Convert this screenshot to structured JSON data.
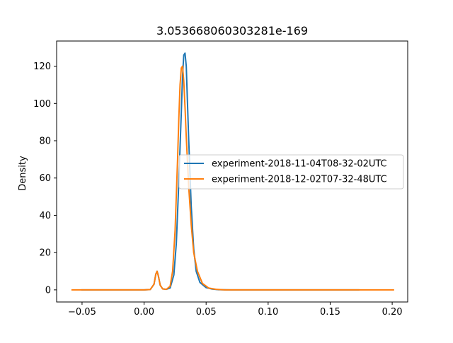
{
  "chart_data": {
    "type": "line",
    "title": "3.053668060303281e-169",
    "xlabel": "",
    "ylabel": "Density",
    "xlim": [
      -0.0705,
      0.2125
    ],
    "ylim": [
      -6.5,
      133.5
    ],
    "xticks": [
      -0.05,
      0.0,
      0.05,
      0.1,
      0.15,
      0.2
    ],
    "xtick_labels": [
      "−0.05",
      "0.00",
      "0.05",
      "0.10",
      "0.15",
      "0.20"
    ],
    "yticks": [
      0,
      20,
      40,
      60,
      80,
      100,
      120
    ],
    "ytick_labels": [
      "0",
      "20",
      "40",
      "60",
      "80",
      "100",
      "120"
    ],
    "grid": false,
    "legend_position": "center-right",
    "series": [
      {
        "name": "experiment-2018-11-04T08-32-02UTC",
        "color": "#1f77b4",
        "x": [
          -0.05,
          0.0,
          0.005,
          0.008,
          0.0095,
          0.0105,
          0.0115,
          0.013,
          0.015,
          0.018,
          0.021,
          0.024,
          0.026,
          0.028,
          0.03,
          0.031,
          0.032,
          0.033,
          0.034,
          0.035,
          0.036,
          0.038,
          0.04,
          0.042,
          0.045,
          0.05,
          0.055,
          0.06,
          0.07,
          0.1,
          0.15,
          0.173
        ],
        "y": [
          0,
          0,
          0.2,
          3,
          8.5,
          10,
          7.5,
          2.5,
          0.5,
          0.3,
          1,
          8,
          25,
          58,
          95,
          115,
          126,
          127,
          120,
          100,
          80,
          45,
          22,
          10,
          4,
          1.2,
          0.4,
          0.1,
          0,
          0,
          0,
          0
        ]
      },
      {
        "name": "experiment-2018-12-02T07-32-48UTC",
        "color": "#ff7f0e",
        "x": [
          -0.058,
          0.0,
          0.005,
          0.008,
          0.0095,
          0.0105,
          0.0115,
          0.013,
          0.015,
          0.018,
          0.021,
          0.023,
          0.025,
          0.027,
          0.028,
          0.029,
          0.03,
          0.031,
          0.032,
          0.033,
          0.034,
          0.036,
          0.038,
          0.04,
          0.043,
          0.047,
          0.052,
          0.058,
          0.065,
          0.1,
          0.15,
          0.201
        ],
        "y": [
          0,
          0,
          0.2,
          3,
          8.5,
          10,
          7.5,
          2.5,
          0.5,
          0.3,
          2,
          10,
          32,
          70,
          92,
          110,
          119,
          120,
          112,
          98,
          82,
          55,
          35,
          20,
          10,
          3.5,
          1,
          0.3,
          0,
          0,
          0,
          0
        ]
      }
    ]
  }
}
